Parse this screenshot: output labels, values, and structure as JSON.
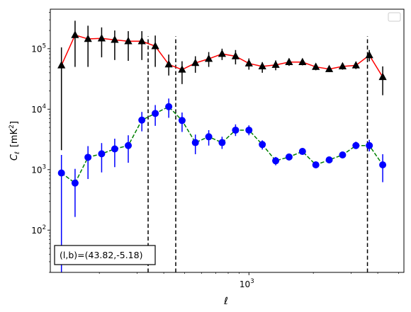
{
  "chart_data": {
    "type": "scatter",
    "x_scale": "log",
    "y_scale": "log",
    "xlim": [
      118,
      5300
    ],
    "ylim": [
      20,
      450000
    ],
    "xlabel": "ℓ",
    "ylabel_main": "C",
    "ylabel_sub": "ℓ",
    "ylabel_unit_pre": "[mK",
    "ylabel_unit_sup": "2",
    "ylabel_unit_post": "]",
    "x_ticks": [
      {
        "value": 1000,
        "base": "10",
        "exp": "3"
      }
    ],
    "y_ticks": [
      {
        "value": 100,
        "base": "10",
        "exp": "2"
      },
      {
        "value": 1000,
        "base": "10",
        "exp": "3"
      },
      {
        "value": 10000,
        "base": "10",
        "exp": "4"
      },
      {
        "value": 100000,
        "base": "10",
        "exp": "5"
      }
    ],
    "annotation": "(l,b)=(43.82,-5.18)",
    "legend": "top-right (empty)",
    "vlines": [
      338,
      455,
      3580
    ],
    "series": [
      {
        "color": "#ff0000",
        "marker": "triangle",
        "marker_color": "#000000",
        "linestyle": "solid",
        "points": [
          {
            "x": 133,
            "y": 53000,
            "lo": 2100,
            "hi": 105000
          },
          {
            "x": 154,
            "y": 168000,
            "lo": 50000,
            "hi": 290000
          },
          {
            "x": 177,
            "y": 145000,
            "lo": 50000,
            "hi": 240000
          },
          {
            "x": 205,
            "y": 148000,
            "lo": 72000,
            "hi": 225000
          },
          {
            "x": 236,
            "y": 140000,
            "lo": 65000,
            "hi": 200000
          },
          {
            "x": 273,
            "y": 133000,
            "lo": 63000,
            "hi": 195000
          },
          {
            "x": 316,
            "y": 133000,
            "lo": 65000,
            "hi": 195000
          },
          {
            "x": 365,
            "y": 110000,
            "lo": 50000,
            "hi": 165000
          },
          {
            "x": 422,
            "y": 55000,
            "lo": 36000,
            "hi": 80000
          },
          {
            "x": 487,
            "y": 45000,
            "lo": 26000,
            "hi": 62000
          },
          {
            "x": 562,
            "y": 58000,
            "lo": 40000,
            "hi": 75000
          },
          {
            "x": 649,
            "y": 68000,
            "lo": 50000,
            "hi": 88000
          },
          {
            "x": 749,
            "y": 82000,
            "lo": 65000,
            "hi": 100000
          },
          {
            "x": 866,
            "y": 75000,
            "lo": 55000,
            "hi": 95000
          },
          {
            "x": 1000,
            "y": 57000,
            "lo": 45000,
            "hi": 69000
          },
          {
            "x": 1155,
            "y": 51000,
            "lo": 40000,
            "hi": 60000
          },
          {
            "x": 1334,
            "y": 54000,
            "lo": 44000,
            "hi": 64000
          },
          {
            "x": 1540,
            "y": 60000,
            "lo": 52000,
            "hi": 69000
          },
          {
            "x": 1779,
            "y": 60000,
            "lo": 53000,
            "hi": 68000
          },
          {
            "x": 2054,
            "y": 50000,
            "lo": 44000,
            "hi": 56000
          },
          {
            "x": 2372,
            "y": 46000,
            "lo": 41000,
            "hi": 51000
          },
          {
            "x": 2739,
            "y": 51000,
            "lo": 45000,
            "hi": 57000
          },
          {
            "x": 3163,
            "y": 53000,
            "lo": 46000,
            "hi": 61000
          },
          {
            "x": 3653,
            "y": 78000,
            "lo": 62000,
            "hi": 95000
          },
          {
            "x": 4219,
            "y": 34000,
            "lo": 17000,
            "hi": 51000
          }
        ]
      },
      {
        "color": "#008000",
        "marker": "circle",
        "marker_color": "#0000ff",
        "linestyle": "dashed",
        "points": [
          {
            "x": 133,
            "y": 880,
            "lo": 20,
            "hi": 1750
          },
          {
            "x": 154,
            "y": 600,
            "lo": 165,
            "hi": 1030
          },
          {
            "x": 177,
            "y": 1600,
            "lo": 700,
            "hi": 2450
          },
          {
            "x": 205,
            "y": 1830,
            "lo": 900,
            "hi": 2750
          },
          {
            "x": 236,
            "y": 2200,
            "lo": 1100,
            "hi": 3250
          },
          {
            "x": 273,
            "y": 2500,
            "lo": 1300,
            "hi": 3700
          },
          {
            "x": 316,
            "y": 6600,
            "lo": 4300,
            "hi": 9000
          },
          {
            "x": 365,
            "y": 8500,
            "lo": 5300,
            "hi": 11700
          },
          {
            "x": 422,
            "y": 11000,
            "lo": 7200,
            "hi": 15000
          },
          {
            "x": 487,
            "y": 6500,
            "lo": 4200,
            "hi": 8800
          },
          {
            "x": 562,
            "y": 2800,
            "lo": 1800,
            "hi": 3800
          },
          {
            "x": 649,
            "y": 3500,
            "lo": 2500,
            "hi": 4500
          },
          {
            "x": 749,
            "y": 2800,
            "lo": 2200,
            "hi": 3500
          },
          {
            "x": 866,
            "y": 4500,
            "lo": 3600,
            "hi": 5600
          },
          {
            "x": 1000,
            "y": 4500,
            "lo": 3700,
            "hi": 5400
          },
          {
            "x": 1155,
            "y": 2600,
            "lo": 2150,
            "hi": 3050
          },
          {
            "x": 1334,
            "y": 1400,
            "lo": 1180,
            "hi": 1620
          },
          {
            "x": 1540,
            "y": 1620,
            "lo": 1420,
            "hi": 1820
          },
          {
            "x": 1779,
            "y": 2000,
            "lo": 1800,
            "hi": 2200
          },
          {
            "x": 2054,
            "y": 1200,
            "lo": 1080,
            "hi": 1330
          },
          {
            "x": 2372,
            "y": 1450,
            "lo": 1300,
            "hi": 1600
          },
          {
            "x": 2739,
            "y": 1750,
            "lo": 1550,
            "hi": 1950
          },
          {
            "x": 3163,
            "y": 2500,
            "lo": 2200,
            "hi": 2900
          },
          {
            "x": 3653,
            "y": 2500,
            "lo": 2000,
            "hi": 3100
          },
          {
            "x": 4219,
            "y": 1200,
            "lo": 620,
            "hi": 1800
          }
        ]
      }
    ]
  }
}
